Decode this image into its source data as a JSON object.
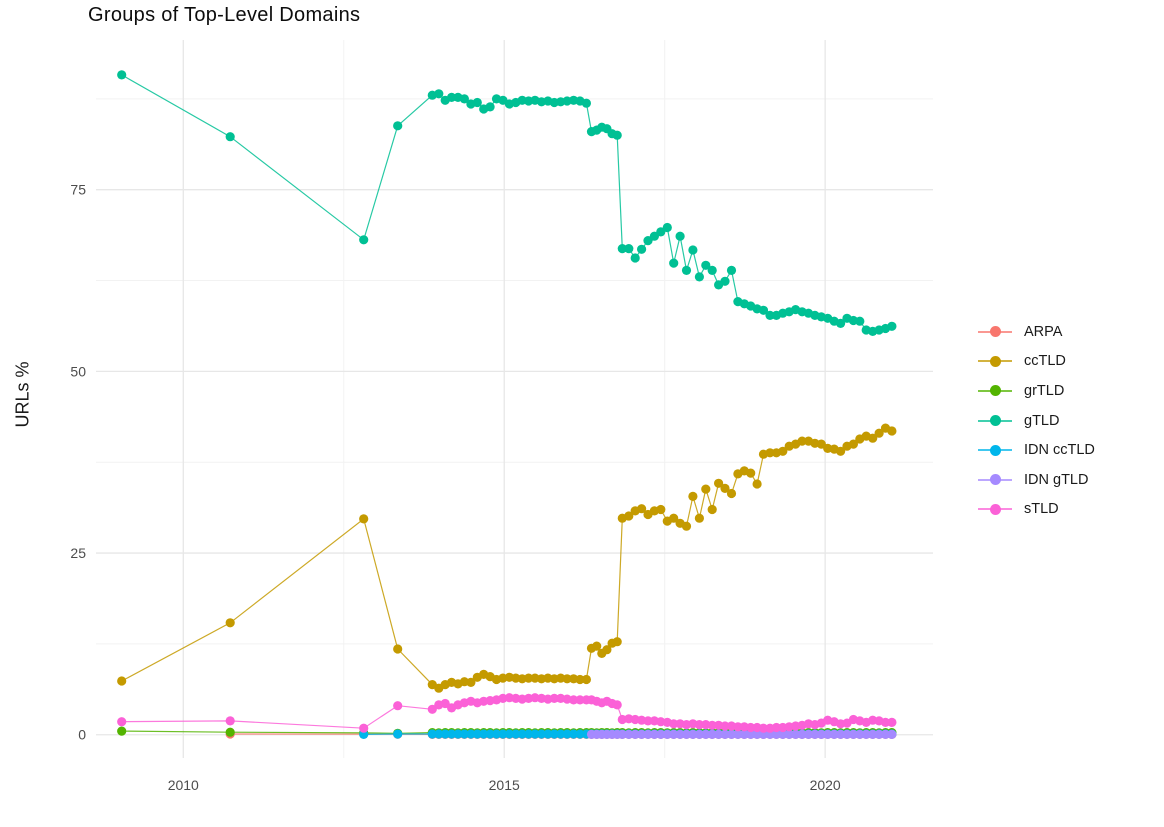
{
  "title": "Groups of Top-Level Domains",
  "axes": {
    "y_label": "URLs %",
    "x_tick_labels": [
      "2010",
      "2015",
      "2020"
    ],
    "y_tick_labels": [
      "0",
      "25",
      "50",
      "75"
    ]
  },
  "legend": {
    "position": "right",
    "items": [
      "ARPA",
      "ccTLD",
      "grTLD",
      "gTLD",
      "IDN ccTLD",
      "IDN gTLD",
      "sTLD"
    ]
  },
  "chart_data": {
    "type": "line",
    "title": "Groups of Top-Level Domains",
    "xlabel": "",
    "ylabel": "URLs %",
    "xlim": [
      2008.64,
      2021.68
    ],
    "ylim": [
      -3.2,
      95.6
    ],
    "x_major_ticks": [
      2010,
      2015,
      2020
    ],
    "x_minor_gridlines": [
      2012.5,
      2017.5
    ],
    "y_major_ticks": [
      0,
      25,
      50,
      75
    ],
    "y_minor_gridlines": [
      12.5,
      37.5,
      62.5,
      87.5
    ],
    "grid": "white panel, light-gray major and fainter minor gridlines, no axis lines or ticks",
    "legend_position": "right",
    "marker": "filled circle on thin line",
    "dense_x": [
      2013.88,
      2013.98,
      2014.08,
      2014.18,
      2014.28,
      2014.38,
      2014.48,
      2014.58,
      2014.68,
      2014.78,
      2014.88,
      2014.98,
      2015.08,
      2015.18,
      2015.28,
      2015.38,
      2015.48,
      2015.58,
      2015.68,
      2015.78,
      2015.88,
      2015.98,
      2016.08,
      2016.18,
      2016.28,
      2016.36,
      2016.44,
      2016.52,
      2016.6,
      2016.68,
      2016.76,
      2016.84,
      2016.94,
      2017.04,
      2017.14,
      2017.24,
      2017.34,
      2017.44,
      2017.54,
      2017.64,
      2017.74,
      2017.84,
      2017.94,
      2018.04,
      2018.14,
      2018.24,
      2018.34,
      2018.44,
      2018.54,
      2018.64,
      2018.74,
      2018.84,
      2018.94,
      2019.04,
      2019.14,
      2019.24,
      2019.34,
      2019.44,
      2019.54,
      2019.64,
      2019.74,
      2019.84,
      2019.94,
      2020.04,
      2020.14,
      2020.24,
      2020.34,
      2020.44,
      2020.54,
      2020.64,
      2020.74,
      2020.84,
      2020.94,
      2021.04
    ],
    "series": [
      {
        "name": "ARPA",
        "color": "#F8766D",
        "sparse": [
          [
            2010.73,
            0.1
          ],
          [
            2012.81,
            0.07
          ],
          [
            2013.34,
            0.06
          ]
        ],
        "dense_y": [
          0.05,
          0.05,
          0.05,
          0.05,
          0.05,
          0.05,
          0.05,
          0.05,
          0.05,
          0.05,
          0.05,
          0.05,
          0.05,
          0.05,
          0.05,
          0.05,
          0.05,
          0.05,
          0.05,
          0.05,
          0.05,
          0.05,
          0.05,
          0.05,
          0.05,
          0.05,
          0.05,
          0.05,
          0.05,
          0.05,
          0.05,
          0.05,
          0.05,
          0.05,
          0.05,
          0.05,
          0.05,
          0.05,
          0.05,
          0.05,
          0.05,
          0.05,
          0.05,
          0.05,
          0.05,
          0.05,
          0.05,
          0.05,
          0.05,
          0.05,
          0.05,
          0.05,
          0.05,
          0.05,
          0.05,
          0.05,
          0.05,
          0.05,
          0.05,
          0.05,
          0.05,
          0.05,
          0.05,
          0.05,
          0.05,
          0.05,
          0.05,
          0.05,
          0.05,
          0.05,
          0.05,
          0.05,
          0.05,
          0.05
        ]
      },
      {
        "name": "ccTLD",
        "color": "#C49A00",
        "sparse": [
          [
            2009.04,
            7.4
          ],
          [
            2010.73,
            15.4
          ],
          [
            2012.81,
            29.7
          ],
          [
            2013.34,
            11.8
          ]
        ],
        "dense_y": [
          6.9,
          6.4,
          6.9,
          7.2,
          7.0,
          7.3,
          7.2,
          7.9,
          8.3,
          8.0,
          7.6,
          7.8,
          7.9,
          7.8,
          7.7,
          7.8,
          7.8,
          7.7,
          7.8,
          7.7,
          7.8,
          7.7,
          7.7,
          7.6,
          7.6,
          11.9,
          12.2,
          11.2,
          11.7,
          12.6,
          12.8,
          29.8,
          30.1,
          30.8,
          31.1,
          30.3,
          30.8,
          31.0,
          29.4,
          29.8,
          29.1,
          28.7,
          32.8,
          29.8,
          33.8,
          31.0,
          34.6,
          33.9,
          33.2,
          35.9,
          36.3,
          36.0,
          34.5,
          38.6,
          38.8,
          38.8,
          39.0,
          39.7,
          40.0,
          40.4,
          40.4,
          40.1,
          40.0,
          39.4,
          39.3,
          39.0,
          39.7,
          40.0,
          40.7,
          41.1,
          40.8,
          41.5,
          42.2,
          41.8
        ]
      },
      {
        "name": "grTLD",
        "color": "#53B400",
        "sparse": [
          [
            2009.04,
            0.5
          ],
          [
            2010.73,
            0.35
          ],
          [
            2012.81,
            0.25
          ],
          [
            2013.34,
            0.2
          ]
        ],
        "dense_y": [
          0.3,
          0.25,
          0.3,
          0.3,
          0.25,
          0.3,
          0.3,
          0.25,
          0.3,
          0.3,
          0.25,
          0.3,
          0.3,
          0.25,
          0.3,
          0.3,
          0.25,
          0.3,
          0.3,
          0.25,
          0.3,
          0.3,
          0.25,
          0.3,
          0.3,
          0.3,
          0.25,
          0.3,
          0.3,
          0.25,
          0.3,
          0.3,
          0.25,
          0.3,
          0.3,
          0.25,
          0.3,
          0.3,
          0.25,
          0.3,
          0.3,
          0.25,
          0.3,
          0.3,
          0.25,
          0.3,
          0.3,
          0.25,
          0.3,
          0.3,
          0.25,
          0.3,
          0.3,
          0.25,
          0.3,
          0.3,
          0.25,
          0.3,
          0.3,
          0.25,
          0.3,
          0.3,
          0.25,
          0.3,
          0.3,
          0.25,
          0.3,
          0.3,
          0.25,
          0.3,
          0.3,
          0.25,
          0.3,
          0.3
        ]
      },
      {
        "name": "gTLD",
        "color": "#00C094",
        "sparse": [
          [
            2009.04,
            90.8
          ],
          [
            2010.73,
            82.3
          ],
          [
            2012.81,
            68.1
          ],
          [
            2013.34,
            83.8
          ]
        ],
        "dense_y": [
          88.0,
          88.2,
          87.3,
          87.7,
          87.7,
          87.5,
          86.8,
          87.0,
          86.1,
          86.4,
          87.5,
          87.3,
          86.8,
          87.0,
          87.3,
          87.2,
          87.3,
          87.1,
          87.2,
          87.0,
          87.1,
          87.2,
          87.3,
          87.2,
          86.9,
          83.0,
          83.2,
          83.6,
          83.4,
          82.7,
          82.5,
          66.9,
          66.9,
          65.6,
          66.8,
          68.0,
          68.6,
          69.2,
          69.8,
          64.9,
          68.6,
          63.9,
          66.7,
          63.0,
          64.6,
          63.9,
          61.9,
          62.4,
          63.9,
          59.6,
          59.3,
          59.0,
          58.6,
          58.4,
          57.7,
          57.7,
          58.0,
          58.2,
          58.5,
          58.2,
          58.0,
          57.7,
          57.5,
          57.3,
          56.9,
          56.6,
          57.3,
          57.0,
          56.9,
          55.7,
          55.5,
          55.7,
          55.9,
          56.2
        ]
      },
      {
        "name": "IDN ccTLD",
        "color": "#00B6EB",
        "sparse": [
          [
            2012.81,
            0.05
          ],
          [
            2013.34,
            0.1
          ]
        ],
        "dense_y": [
          0.1,
          0.1,
          0.1,
          0.1,
          0.1,
          0.1,
          0.1,
          0.1,
          0.1,
          0.1,
          0.1,
          0.1,
          0.1,
          0.1,
          0.1,
          0.1,
          0.1,
          0.1,
          0.1,
          0.1,
          0.1,
          0.1,
          0.1,
          0.1,
          0.1,
          0.1,
          0.1,
          0.1,
          0.1,
          0.1,
          0.1,
          0.1,
          0.1,
          0.1,
          0.1,
          0.1,
          0.1,
          0.1,
          0.1,
          0.1,
          0.1,
          0.1,
          0.1,
          0.1,
          0.1,
          0.1,
          0.1,
          0.1,
          0.1,
          0.1,
          0.1,
          0.1,
          0.1,
          0.1,
          0.1,
          0.1,
          0.1,
          0.1,
          0.1,
          0.1,
          0.1,
          0.1,
          0.1,
          0.1,
          0.1,
          0.1,
          0.1,
          0.1,
          0.1,
          0.1,
          0.1,
          0.1,
          0.1,
          0.1
        ]
      },
      {
        "name": "IDN gTLD",
        "color": "#A58AFF",
        "sparse": [],
        "dense_y": [
          null,
          null,
          null,
          null,
          null,
          null,
          null,
          null,
          null,
          null,
          null,
          null,
          null,
          null,
          null,
          null,
          null,
          null,
          null,
          null,
          null,
          null,
          null,
          null,
          null,
          0.05,
          0.05,
          0.05,
          0.05,
          0.05,
          0.05,
          0.05,
          0.05,
          0.05,
          0.05,
          0.05,
          0.05,
          0.05,
          0.05,
          0.05,
          0.05,
          0.05,
          0.05,
          0.05,
          0.05,
          0.05,
          0.05,
          0.05,
          0.05,
          0.05,
          0.05,
          0.05,
          0.05,
          0.05,
          0.05,
          0.05,
          0.05,
          0.05,
          0.05,
          0.05,
          0.05,
          0.05,
          0.05,
          0.05,
          0.05,
          0.05,
          0.05,
          0.05,
          0.05,
          0.05,
          0.05,
          0.05,
          0.05,
          0.05
        ]
      },
      {
        "name": "sTLD",
        "color": "#FB61D7",
        "sparse": [
          [
            2009.04,
            1.8
          ],
          [
            2010.73,
            1.9
          ],
          [
            2012.81,
            0.9
          ],
          [
            2013.34,
            4.0
          ]
        ],
        "dense_y": [
          3.5,
          4.1,
          4.3,
          3.7,
          4.1,
          4.4,
          4.6,
          4.4,
          4.6,
          4.7,
          4.8,
          5.0,
          5.1,
          5.0,
          4.9,
          5.0,
          5.1,
          5.0,
          4.9,
          5.0,
          5.0,
          4.9,
          4.8,
          4.8,
          4.8,
          4.8,
          4.6,
          4.4,
          4.6,
          4.3,
          4.1,
          2.1,
          2.2,
          2.1,
          2.0,
          1.9,
          1.9,
          1.8,
          1.7,
          1.5,
          1.5,
          1.4,
          1.5,
          1.4,
          1.4,
          1.3,
          1.3,
          1.2,
          1.2,
          1.1,
          1.1,
          1.0,
          1.0,
          0.9,
          0.9,
          1.0,
          1.0,
          1.1,
          1.2,
          1.3,
          1.5,
          1.4,
          1.6,
          2.0,
          1.8,
          1.5,
          1.6,
          2.1,
          1.9,
          1.7,
          2.0,
          1.9,
          1.7,
          1.7
        ]
      }
    ]
  }
}
